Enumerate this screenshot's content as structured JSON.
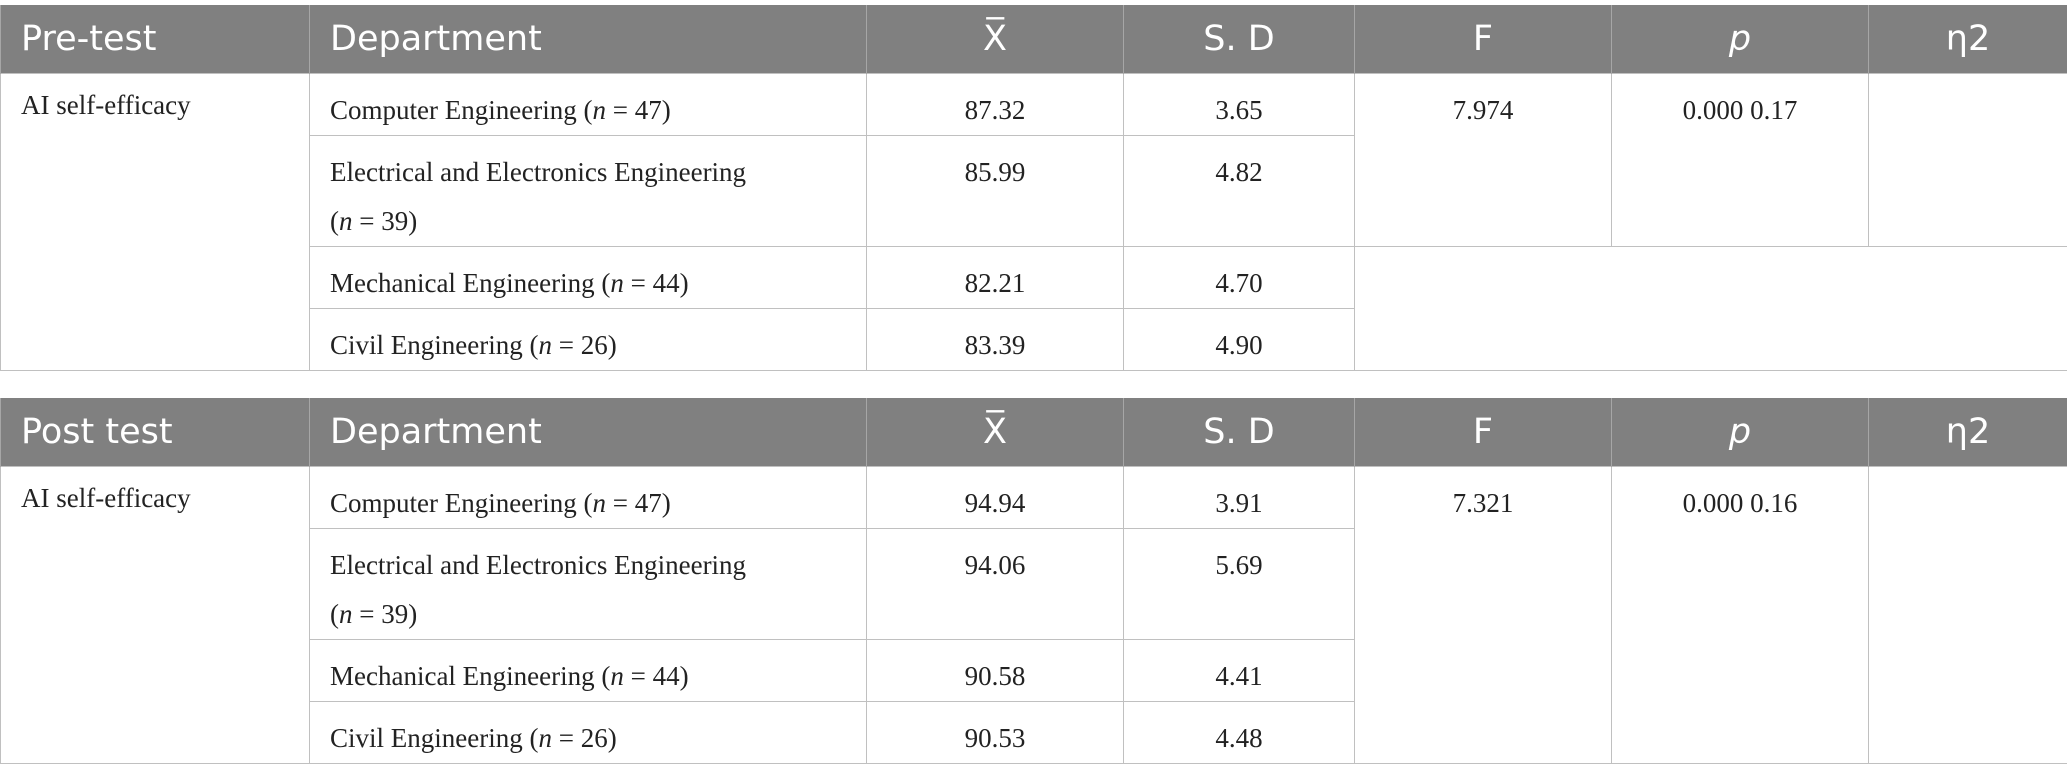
{
  "tables": [
    {
      "header": {
        "stage": "Pre-test",
        "department": "Department",
        "mean": "X̅",
        "sd": "S. D",
        "f": "F",
        "p": "p",
        "eta": "η2"
      },
      "measure": "AI self-efficacy",
      "F": "7.974",
      "p_eta": "0.000 0.17",
      "rows": [
        {
          "department": "Computer Engineering",
          "n": "47",
          "mean": "87.32",
          "sd": "3.65"
        },
        {
          "department": "Electrical and Electronics Engineering",
          "n": "39",
          "mean": "85.99",
          "sd": "4.82"
        },
        {
          "department": "Mechanical Engineering",
          "n": "44",
          "mean": "82.21",
          "sd": "4.70"
        },
        {
          "department": "Civil Engineering",
          "n": "26",
          "mean": "83.39",
          "sd": "4.90"
        }
      ]
    },
    {
      "header": {
        "stage": "Post test",
        "department": "Department",
        "mean": "X̅",
        "sd": "S. D",
        "f": "F",
        "p": "p",
        "eta": "η2"
      },
      "measure": "AI self-efficacy",
      "F": "7.321",
      "p_eta": "0.000 0.16",
      "rows": [
        {
          "department": "Computer Engineering",
          "n": "47",
          "mean": "94.94",
          "sd": "3.91"
        },
        {
          "department": "Electrical and Electronics Engineering",
          "n": "39",
          "mean": "94.06",
          "sd": "5.69"
        },
        {
          "department": "Mechanical Engineering",
          "n": "44",
          "mean": "90.58",
          "sd": "4.41"
        },
        {
          "department": "Civil Engineering",
          "n": "26",
          "mean": "90.53",
          "sd": "4.48"
        }
      ]
    }
  ],
  "n_symbol": "n",
  "n_equals": " = "
}
